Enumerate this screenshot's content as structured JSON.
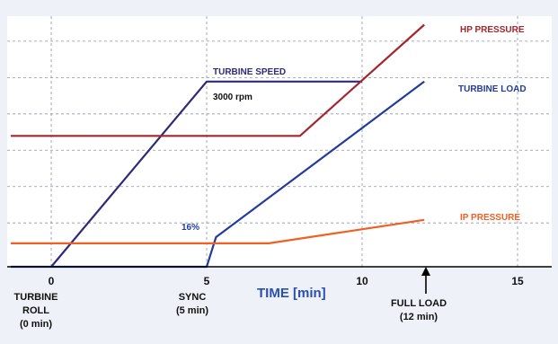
{
  "chart_data": {
    "type": "line",
    "xlabel": "TIME [min]",
    "xlim": [
      -1.3,
      16.2
    ],
    "ylim": [
      0,
      100
    ],
    "x_ticks": [
      {
        "value": 0,
        "label": "0"
      },
      {
        "value": 5,
        "label": "5"
      },
      {
        "value": 10,
        "label": "10"
      },
      {
        "value": 15,
        "label": "15"
      }
    ],
    "grid": true,
    "series": [
      {
        "name": "TURBINE SPEED",
        "color": "#2e2a78",
        "points": [
          [
            0,
            0
          ],
          [
            5,
            75
          ],
          [
            10,
            75
          ]
        ]
      },
      {
        "name": "HP PRESSURE",
        "color": "#a4262c",
        "points": [
          [
            -1.3,
            53
          ],
          [
            8,
            53
          ],
          [
            12,
            98
          ]
        ]
      },
      {
        "name": "TURBINE LOAD",
        "color": "#233c9c",
        "points": [
          [
            -1.3,
            0
          ],
          [
            5,
            0
          ],
          [
            5.3,
            12
          ],
          [
            12,
            75
          ]
        ]
      },
      {
        "name": "IP PRESSURE",
        "color": "#f06022",
        "points": [
          [
            -1.3,
            9.5
          ],
          [
            7,
            9.5
          ],
          [
            12,
            19
          ]
        ]
      }
    ],
    "annotations": {
      "speed_value": "3000 rpm",
      "load_step": "16%"
    },
    "markers": [
      {
        "label_line1": "TURBINE",
        "label_line2": "ROLL",
        "label_line3": "(0 min)"
      },
      {
        "label_line1": "SYNC",
        "label_line2": "(5 min)"
      },
      {
        "label_line1": "FULL LOAD",
        "label_line2": "(12 min)"
      }
    ]
  }
}
